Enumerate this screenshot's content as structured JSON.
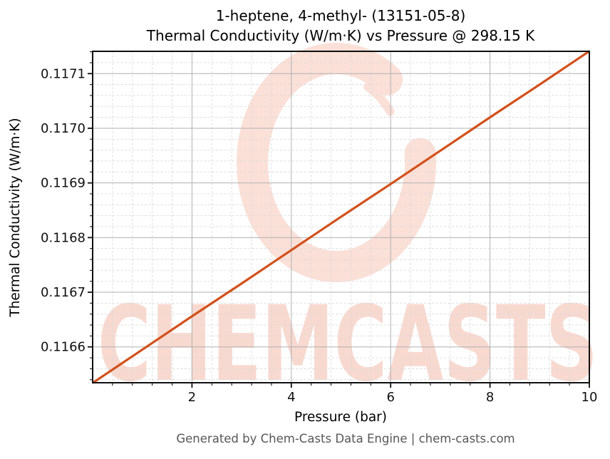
{
  "chart_data": {
    "type": "line",
    "title_line1": "1-heptene, 4-methyl- (13151-05-8)",
    "title_line2": "Thermal Conductivity (W/m·K) vs Pressure @ 298.15 K",
    "xlabel": "Pressure (bar)",
    "ylabel": "Thermal Conductivity (W/m·K)",
    "xlim": [
      0,
      10
    ],
    "ylim": [
      0.1165344,
      0.1171408
    ],
    "x_major_ticks": [
      2,
      4,
      6,
      8,
      10
    ],
    "x_tick_labels": [
      "2",
      "4",
      "6",
      "8",
      "10"
    ],
    "x_minor_step": 0.4,
    "y_major_ticks": [
      0.1166,
      0.1167,
      0.1168,
      0.1169,
      0.117,
      0.1171
    ],
    "y_tick_labels": [
      "0.1166",
      "0.1167",
      "0.1168",
      "0.1169",
      "0.1170",
      "0.1171"
    ],
    "y_minor_step": 2e-05,
    "grid": {
      "major": true,
      "minor": true
    },
    "legend_position": "none",
    "series": [
      {
        "name": "Thermal Conductivity",
        "color": "#d2511c",
        "x": [
          0,
          1,
          2,
          3,
          4,
          5,
          6,
          7,
          8,
          9,
          10
        ],
        "y": [
          0.116534,
          0.116595,
          0.116656,
          0.116716,
          0.116777,
          0.116838,
          0.116898,
          0.116959,
          0.11702,
          0.11708,
          0.117141
        ]
      }
    ]
  },
  "watermark": {
    "text": "CHEMCASTS",
    "text_color": "#f8d5cb",
    "logo_color": "#fbe0d8",
    "logo": "brush-circle"
  },
  "footer": {
    "text": "Generated by Chem-Casts Data Engine | chem-casts.com",
    "color": "#575757"
  },
  "colors": {
    "line": "#d2511c",
    "grid_major": "#b0b0b0",
    "grid_minor": "#d9d9d9",
    "spine": "#0f0f0f",
    "tick": "#0f0f0f",
    "background": "#ffffff"
  }
}
